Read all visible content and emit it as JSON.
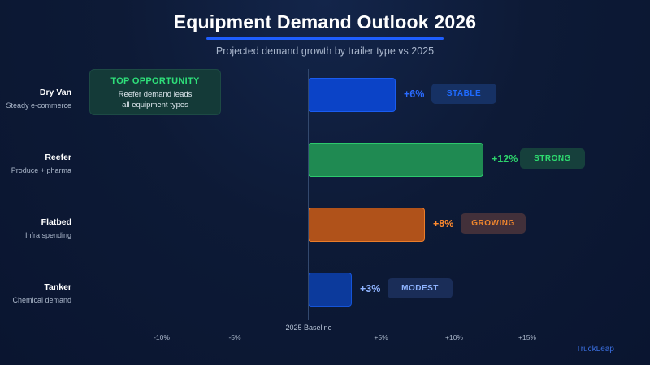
{
  "title": "Equipment Demand Outlook 2026",
  "subtitle": "Projected demand growth by trailer type vs 2025",
  "callout": {
    "title": "TOP OPPORTUNITY",
    "line1": "Reefer demand leads",
    "line2": "all equipment types"
  },
  "baseline_label": "2025 Baseline",
  "brand": "TruckLeap",
  "chart_data": {
    "type": "bar",
    "orientation": "horizontal",
    "title": "Equipment Demand Outlook 2026",
    "subtitle": "Projected demand growth by trailer type vs 2025",
    "xlim": [
      -10,
      15
    ],
    "categories": [
      "Dry Van",
      "Reefer",
      "Flatbed",
      "Tanker"
    ],
    "subtitles": [
      "Steady e-commerce",
      "Produce + pharma",
      "Infra spending",
      "Chemical demand"
    ],
    "values": [
      6,
      12,
      8,
      3
    ],
    "value_labels": [
      "+6%",
      "+12%",
      "+8%",
      "+3%"
    ],
    "badges": [
      "STABLE",
      "STRONG",
      "GROWING",
      "MODEST"
    ],
    "ticks": [
      -10,
      -5,
      5,
      10,
      15
    ],
    "tick_labels": [
      "-10%",
      "-5%",
      "+5%",
      "+10%",
      "+15%"
    ],
    "colors": {
      "fill": [
        "#0b43c7",
        "#1f8a52",
        "#b0521a",
        "#0c3a9c"
      ],
      "border": [
        "#1a5cf0",
        "#2dc96d",
        "#ea7d2a",
        "#1554d8"
      ],
      "label": [
        "#2a6bff",
        "#2dd46c",
        "#ff8a2e",
        "#8fb4ff"
      ],
      "badge_bg": [
        "#163164",
        "#16403c",
        "#42303a",
        "#1a2d58"
      ],
      "badge_text": [
        "#1f6bff",
        "#2edd70",
        "#f0862e",
        "#8fb4ff"
      ]
    }
  }
}
